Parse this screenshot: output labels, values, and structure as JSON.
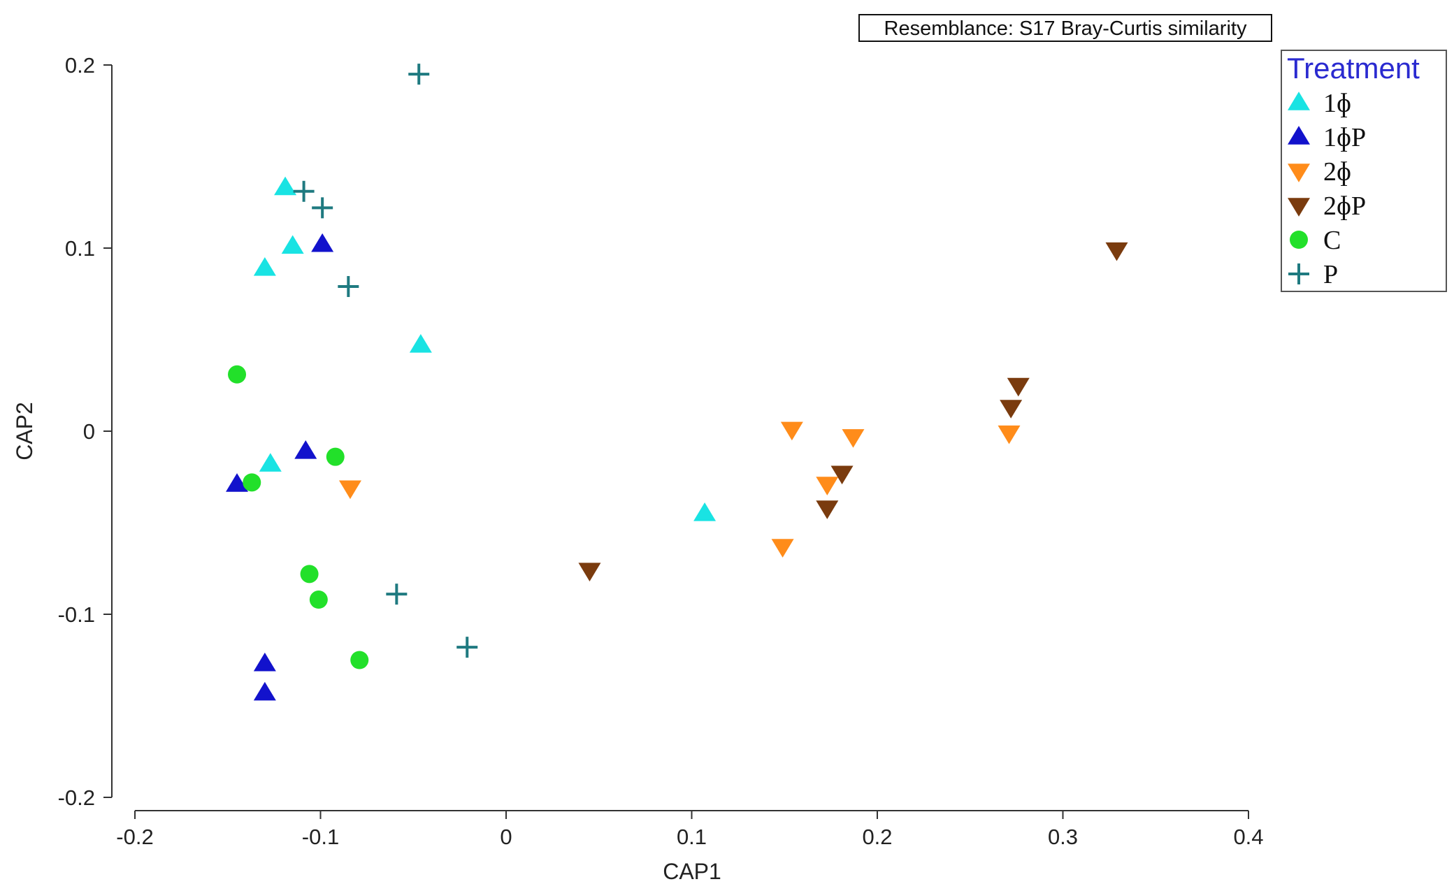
{
  "chart_data": {
    "type": "scatter",
    "title": "",
    "annotation": "Resemblance: S17 Bray-Curtis similarity",
    "xlabel": "CAP1",
    "ylabel": "CAP2",
    "xlim": [
      -0.2,
      0.4
    ],
    "ylim": [
      -0.2,
      0.2
    ],
    "x_ticks": [
      -0.2,
      -0.1,
      0,
      0.1,
      0.2,
      0.3,
      0.4
    ],
    "x_tick_labels": [
      "-0.2",
      "-0.1",
      "0",
      "0.1",
      "0.2",
      "0.3",
      "0.4"
    ],
    "y_ticks": [
      -0.2,
      -0.1,
      0,
      0.1,
      0.2
    ],
    "y_tick_labels": [
      "-0.2",
      "-0.1",
      "0",
      "0.1",
      "0.2"
    ],
    "grid": false,
    "legend": {
      "title": "Treatment",
      "position": "top-right"
    },
    "series": [
      {
        "name": "1ɸ",
        "marker": "triangle-up",
        "color": "#19e3e3",
        "points": [
          [
            -0.119,
            0.133
          ],
          [
            -0.115,
            0.101
          ],
          [
            -0.13,
            0.089
          ],
          [
            -0.046,
            0.047
          ],
          [
            -0.127,
            -0.018
          ],
          [
            0.107,
            -0.045
          ]
        ]
      },
      {
        "name": "1ɸP",
        "marker": "triangle-up",
        "color": "#1212cc",
        "points": [
          [
            -0.099,
            0.102
          ],
          [
            -0.108,
            -0.011
          ],
          [
            -0.145,
            -0.029
          ],
          [
            -0.13,
            -0.127
          ],
          [
            -0.13,
            -0.143
          ]
        ]
      },
      {
        "name": "2ɸ",
        "marker": "triangle-down",
        "color": "#ff8c1a",
        "points": [
          [
            -0.084,
            -0.031
          ],
          [
            0.154,
            0.001
          ],
          [
            0.187,
            -0.003
          ],
          [
            0.173,
            -0.029
          ],
          [
            0.149,
            -0.063
          ],
          [
            0.271,
            -0.001
          ]
        ]
      },
      {
        "name": "2ɸP",
        "marker": "triangle-down",
        "color": "#7a3b0e",
        "points": [
          [
            0.329,
            0.099
          ],
          [
            0.276,
            0.025
          ],
          [
            0.272,
            0.013
          ],
          [
            0.181,
            -0.023
          ],
          [
            0.173,
            -0.042
          ],
          [
            0.045,
            -0.076
          ]
        ]
      },
      {
        "name": "C",
        "marker": "circle",
        "color": "#22e02a",
        "points": [
          [
            -0.145,
            0.031
          ],
          [
            -0.137,
            -0.028
          ],
          [
            -0.092,
            -0.014
          ],
          [
            -0.106,
            -0.078
          ],
          [
            -0.101,
            -0.092
          ],
          [
            -0.079,
            -0.125
          ]
        ]
      },
      {
        "name": "P",
        "marker": "plus",
        "color": "#1f7a80",
        "points": [
          [
            -0.047,
            0.195
          ],
          [
            -0.109,
            0.131
          ],
          [
            -0.099,
            0.122
          ],
          [
            -0.085,
            0.079
          ],
          [
            -0.059,
            -0.089
          ],
          [
            -0.021,
            -0.118
          ]
        ]
      }
    ]
  }
}
